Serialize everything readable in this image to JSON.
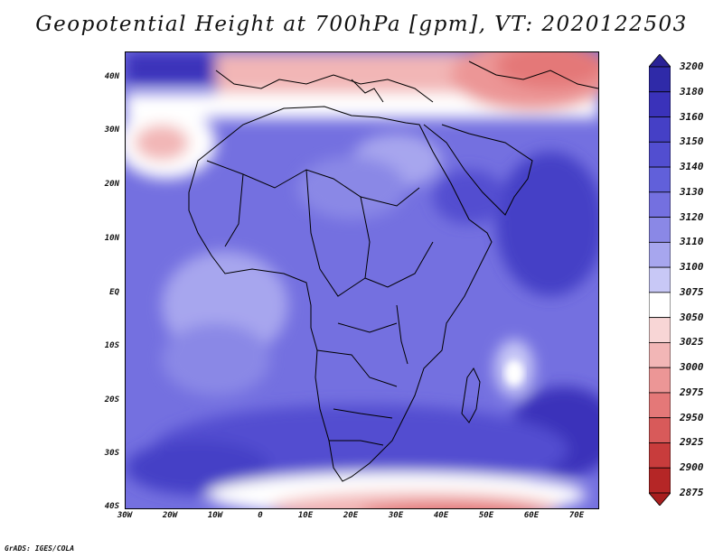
{
  "title": "Geopotential Height at 700hPa [gpm], VT: 2020122503",
  "map": {
    "lat_labels": [
      "40N",
      "30N",
      "20N",
      "10N",
      "EQ",
      "10S",
      "20S",
      "30S",
      "40S"
    ],
    "lon_labels": [
      "30W",
      "20W",
      "10W",
      "0",
      "10E",
      "20E",
      "30E",
      "40E",
      "50E",
      "60E",
      "70E"
    ],
    "lat_range": [
      -40,
      45
    ],
    "lon_range": [
      -30,
      75
    ]
  },
  "colorbar": {
    "levels": [
      "3200",
      "3180",
      "3160",
      "3150",
      "3140",
      "3130",
      "3120",
      "3110",
      "3100",
      "3075",
      "3050",
      "3025",
      "3000",
      "2975",
      "2950",
      "2925",
      "2900",
      "2875"
    ],
    "colors": [
      "#2a2296",
      "#2f2aa8",
      "#3a32ba",
      "#4540c6",
      "#524ed0",
      "#6160da",
      "#7470e0",
      "#8a88e6",
      "#a7a6ee",
      "#c8c8f6",
      "#ffffff",
      "#f8d6d6",
      "#f2b6b6",
      "#ec9696",
      "#e47878",
      "#d85a5a",
      "#c83c3c",
      "#b52626",
      "#a81e1e"
    ]
  },
  "credit": "GrADS: IGES/COLA"
}
